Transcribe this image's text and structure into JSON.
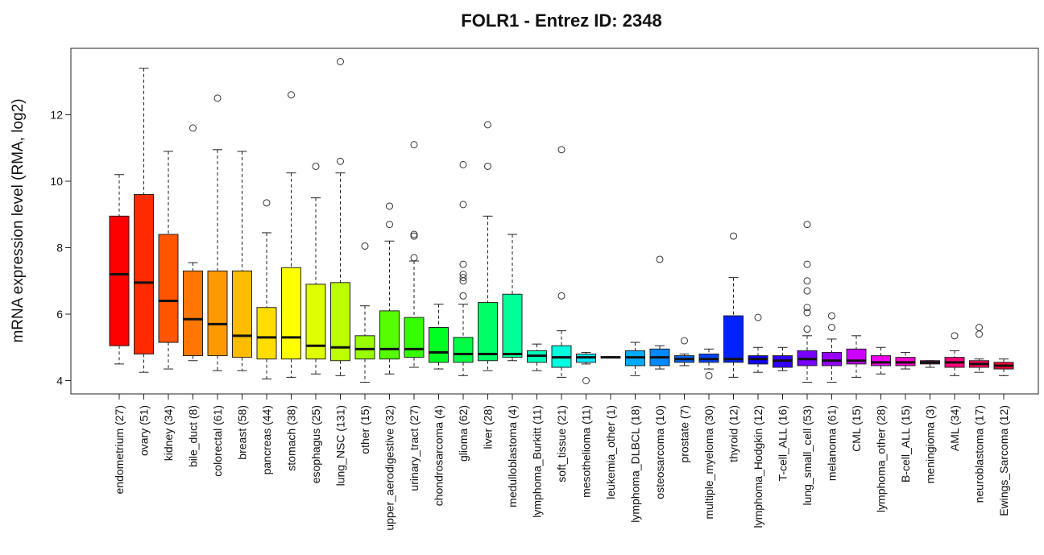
{
  "chart_data": {
    "type": "box",
    "title": "FOLR1  -  Entrez ID: 2348",
    "ylabel": "mRNA expression level (RMA, log2)",
    "xlabel": "",
    "ylim": [
      3.6,
      14.0
    ],
    "yticks": [
      4,
      6,
      8,
      10,
      12
    ],
    "grid": false,
    "categories": [
      {
        "label": "endometrium (27)",
        "color": "#ff0000",
        "q1": 5.05,
        "median": 7.2,
        "q3": 8.95,
        "lo": 4.5,
        "hi": 10.2,
        "outliers": []
      },
      {
        "label": "ovary (51)",
        "color": "#ff2a00",
        "q1": 4.8,
        "median": 6.95,
        "q3": 9.6,
        "lo": 4.25,
        "hi": 13.4,
        "outliers": []
      },
      {
        "label": "kidney (34)",
        "color": "#ff5500",
        "q1": 5.15,
        "median": 6.4,
        "q3": 8.4,
        "lo": 4.35,
        "hi": 10.9,
        "outliers": []
      },
      {
        "label": "bile_duct (8)",
        "color": "#ff7700",
        "q1": 4.75,
        "median": 5.85,
        "q3": 7.3,
        "lo": 4.6,
        "hi": 7.55,
        "outliers": [
          11.6
        ]
      },
      {
        "label": "colorectal (61)",
        "color": "#ff9900",
        "q1": 4.75,
        "median": 5.7,
        "q3": 7.3,
        "lo": 4.3,
        "hi": 10.95,
        "outliers": [
          12.5
        ]
      },
      {
        "label": "breast (58)",
        "color": "#ffbb00",
        "q1": 4.7,
        "median": 5.35,
        "q3": 7.3,
        "lo": 4.3,
        "hi": 10.9,
        "outliers": []
      },
      {
        "label": "pancreas (44)",
        "color": "#ffdd00",
        "q1": 4.65,
        "median": 5.3,
        "q3": 6.2,
        "lo": 4.05,
        "hi": 8.45,
        "outliers": [
          9.35
        ]
      },
      {
        "label": "stomach (38)",
        "color": "#ffff00",
        "q1": 4.65,
        "median": 5.3,
        "q3": 7.4,
        "lo": 4.1,
        "hi": 10.25,
        "outliers": [
          12.6
        ]
      },
      {
        "label": "esophagus (25)",
        "color": "#ddff00",
        "q1": 4.65,
        "median": 5.05,
        "q3": 6.9,
        "lo": 4.2,
        "hi": 9.5,
        "outliers": [
          10.45
        ]
      },
      {
        "label": "lung_NSC (131)",
        "color": "#bbff00",
        "q1": 4.6,
        "median": 5.0,
        "q3": 6.95,
        "lo": 4.15,
        "hi": 10.25,
        "outliers": [
          10.6,
          13.6
        ]
      },
      {
        "label": "other (15)",
        "color": "#99ff00",
        "q1": 4.65,
        "median": 4.95,
        "q3": 5.35,
        "lo": 3.95,
        "hi": 6.25,
        "outliers": [
          8.05
        ]
      },
      {
        "label": "upper_aerodigestive (32)",
        "color": "#55ff00",
        "q1": 4.65,
        "median": 4.95,
        "q3": 6.1,
        "lo": 4.2,
        "hi": 8.2,
        "outliers": [
          8.7,
          9.25
        ]
      },
      {
        "label": "urinary_tract (27)",
        "color": "#33ff00",
        "q1": 4.7,
        "median": 4.95,
        "q3": 5.9,
        "lo": 4.4,
        "hi": 7.6,
        "outliers": [
          7.7,
          8.4,
          8.35,
          11.1
        ]
      },
      {
        "label": "chondrosarcoma (4)",
        "color": "#00ff22",
        "q1": 4.55,
        "median": 4.85,
        "q3": 5.6,
        "lo": 4.35,
        "hi": 6.3,
        "outliers": []
      },
      {
        "label": "glioma (62)",
        "color": "#00ff44",
        "q1": 4.55,
        "median": 4.8,
        "q3": 5.3,
        "lo": 4.15,
        "hi": 6.3,
        "outliers": [
          6.55,
          7.1,
          7.2,
          7.0,
          7.5,
          9.3,
          10.5
        ]
      },
      {
        "label": "liver (28)",
        "color": "#00ff66",
        "q1": 4.6,
        "median": 4.8,
        "q3": 6.35,
        "lo": 4.3,
        "hi": 8.95,
        "outliers": [
          10.45,
          11.7
        ]
      },
      {
        "label": "medulloblastoma (4)",
        "color": "#00ff99",
        "q1": 4.7,
        "median": 4.8,
        "q3": 6.6,
        "lo": 4.6,
        "hi": 8.4,
        "outliers": []
      },
      {
        "label": "lymphoma_Burkitt (11)",
        "color": "#00ffbb",
        "q1": 4.55,
        "median": 4.75,
        "q3": 4.9,
        "lo": 4.3,
        "hi": 5.1,
        "outliers": []
      },
      {
        "label": "soft_tissue (21)",
        "color": "#00ffdd",
        "q1": 4.4,
        "median": 4.7,
        "q3": 5.05,
        "lo": 4.1,
        "hi": 5.5,
        "outliers": [
          6.55,
          10.95
        ]
      },
      {
        "label": "mesothelioma (11)",
        "color": "#00eeff",
        "q1": 4.55,
        "median": 4.7,
        "q3": 4.8,
        "lo": 4.5,
        "hi": 4.85,
        "outliers": [
          4.0
        ]
      },
      {
        "label": "leukemia_other (1)",
        "color": "#00ccff",
        "q1": 4.68,
        "median": 4.7,
        "q3": 4.72,
        "lo": 4.68,
        "hi": 4.72,
        "outliers": []
      },
      {
        "label": "lymphoma_DLBCL (18)",
        "color": "#00aaff",
        "q1": 4.45,
        "median": 4.7,
        "q3": 4.9,
        "lo": 4.15,
        "hi": 5.15,
        "outliers": []
      },
      {
        "label": "osteosarcoma (10)",
        "color": "#0088ff",
        "q1": 4.45,
        "median": 4.7,
        "q3": 4.95,
        "lo": 4.35,
        "hi": 5.05,
        "outliers": [
          7.65
        ]
      },
      {
        "label": "prostate (7)",
        "color": "#0066ff",
        "q1": 4.55,
        "median": 4.65,
        "q3": 4.75,
        "lo": 4.45,
        "hi": 4.8,
        "outliers": [
          5.2
        ]
      },
      {
        "label": "multiple_myeloma (30)",
        "color": "#0044ff",
        "q1": 4.55,
        "median": 4.65,
        "q3": 4.8,
        "lo": 4.35,
        "hi": 4.95,
        "outliers": [
          4.15
        ]
      },
      {
        "label": "thyroid (12)",
        "color": "#0022ff",
        "q1": 4.55,
        "median": 4.65,
        "q3": 5.95,
        "lo": 4.1,
        "hi": 7.1,
        "outliers": [
          8.35
        ]
      },
      {
        "label": "lymphoma_Hodgkin (12)",
        "color": "#1100ff",
        "q1": 4.5,
        "median": 4.65,
        "q3": 4.75,
        "lo": 4.25,
        "hi": 5.0,
        "outliers": [
          5.9
        ]
      },
      {
        "label": "T-cell_ALL (16)",
        "color": "#3300ff",
        "q1": 4.4,
        "median": 4.6,
        "q3": 4.75,
        "lo": 4.3,
        "hi": 5.0,
        "outliers": []
      },
      {
        "label": "lung_small_cell (53)",
        "color": "#7700ff",
        "q1": 4.45,
        "median": 4.65,
        "q3": 4.9,
        "lo": 3.95,
        "hi": 5.35,
        "outliers": [
          5.55,
          6.05,
          6.2,
          6.7,
          7.0,
          7.5,
          8.7
        ]
      },
      {
        "label": "melanoma (61)",
        "color": "#9900ff",
        "q1": 4.45,
        "median": 4.6,
        "q3": 4.85,
        "lo": 3.95,
        "hi": 5.25,
        "outliers": [
          5.6,
          5.95
        ]
      },
      {
        "label": "CML (15)",
        "color": "#cc00ff",
        "q1": 4.5,
        "median": 4.6,
        "q3": 4.95,
        "lo": 4.1,
        "hi": 5.35,
        "outliers": []
      },
      {
        "label": "lymphoma_other (28)",
        "color": "#ee00ee",
        "q1": 4.45,
        "median": 4.55,
        "q3": 4.75,
        "lo": 4.2,
        "hi": 5.0,
        "outliers": []
      },
      {
        "label": "B-cell_ALL (15)",
        "color": "#ff00cc",
        "q1": 4.45,
        "median": 4.55,
        "q3": 4.7,
        "lo": 4.35,
        "hi": 4.85,
        "outliers": []
      },
      {
        "label": "meningioma (3)",
        "color": "#ff0099",
        "q1": 4.5,
        "median": 4.55,
        "q3": 4.6,
        "lo": 4.4,
        "hi": 4.6,
        "outliers": []
      },
      {
        "label": "AML (34)",
        "color": "#ff0077",
        "q1": 4.4,
        "median": 4.55,
        "q3": 4.7,
        "lo": 4.15,
        "hi": 4.9,
        "outliers": [
          5.35
        ]
      },
      {
        "label": "neuroblastoma (17)",
        "color": "#ff0055",
        "q1": 4.4,
        "median": 4.5,
        "q3": 4.6,
        "lo": 4.25,
        "hi": 4.65,
        "outliers": [
          5.4,
          5.6
        ]
      },
      {
        "label": "Ewings_Sarcoma (12)",
        "color": "#ff0033",
        "q1": 4.35,
        "median": 4.45,
        "q3": 4.55,
        "lo": 4.15,
        "hi": 4.65,
        "outliers": []
      }
    ]
  }
}
